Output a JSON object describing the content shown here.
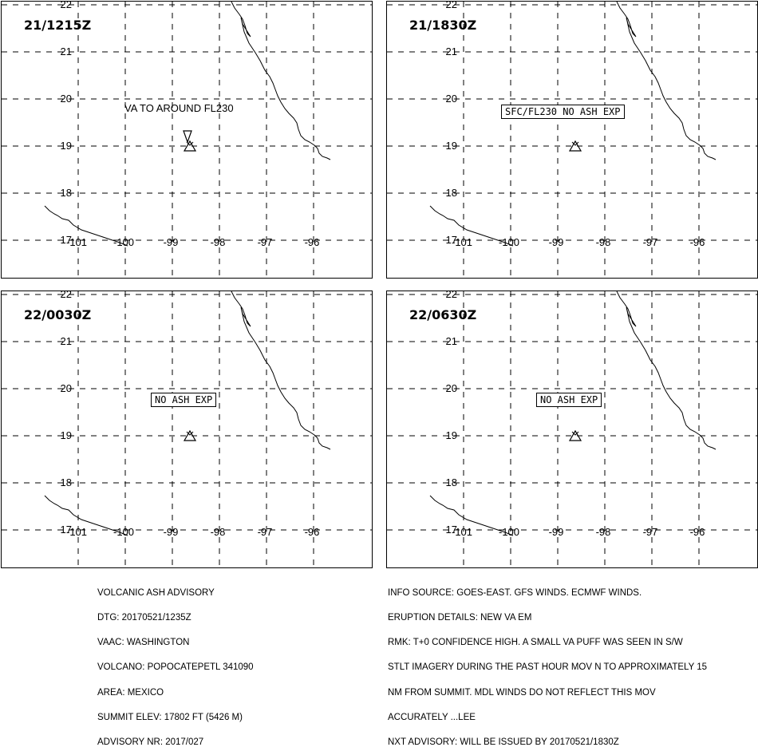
{
  "panels": [
    {
      "time": "21/1215Z",
      "note": "VA TO AROUND FL230",
      "box": "",
      "show_ash_area": true
    },
    {
      "time": "21/1830Z",
      "note": "",
      "box": "SFC/FL230 NO ASH EXP",
      "show_ash_area": false
    },
    {
      "time": "22/0030Z",
      "note": "",
      "box": "NO ASH EXP",
      "show_ash_area": false
    },
    {
      "time": "22/0630Z",
      "note": "",
      "box": "NO ASH EXP",
      "show_ash_area": false
    }
  ],
  "axes": {
    "latitudes": [
      "22",
      "21",
      "20",
      "19",
      "18",
      "17"
    ],
    "longitudes": [
      "-101",
      "-100",
      "-99",
      "-98",
      "-97",
      "-96"
    ]
  },
  "advisory_left": [
    "VOLCANIC ASH ADVISORY",
    "DTG: 20170521/1235Z",
    "VAAC: WASHINGTON",
    "VOLCANO: POPOCATEPETL 341090",
    "AREA: MEXICO",
    "SUMMIT ELEV: 17802 FT (5426 M)",
    "ADVISORY NR: 2017/027"
  ],
  "advisory_right": [
    "INFO SOURCE: GOES-EAST. GFS WINDS. ECMWF WINDS.",
    "ERUPTION DETAILS: NEW VA EM",
    "RMK: T+0 CONFIDENCE HIGH. A SMALL VA PUFF WAS SEEN IN S/W",
    "STLT IMAGERY DURING THE PAST HOUR MOV N TO APPROXIMATELY 15",
    "NM FROM SUMMIT. MDL WINDS DO NOT REFLECT THIS MOV",
    "ACCURATELY ...LEE",
    "NXT ADVISORY: WILL BE ISSUED BY 20170521/1830Z"
  ]
}
